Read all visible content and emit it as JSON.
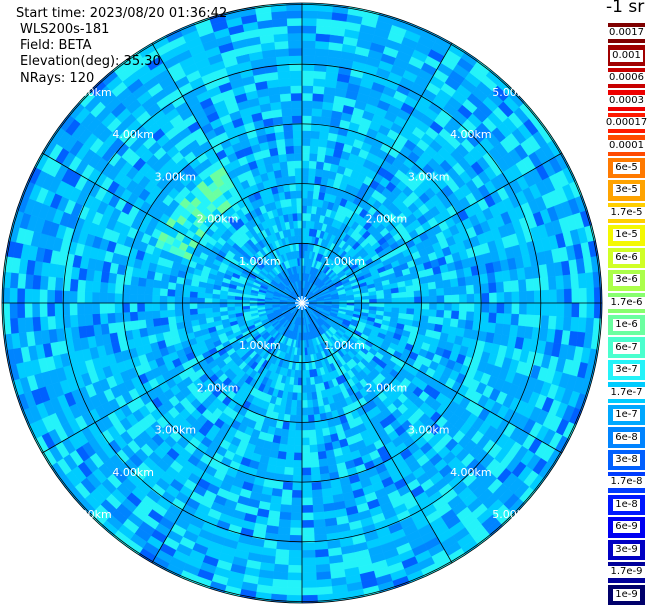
{
  "header": {
    "start_time": "Start time: 2023/08/20 01:36:42",
    "instrument": "WLS200s-181",
    "field": "Field: BETA",
    "elevation": "Elevation(deg): 35.30",
    "nrays": "NRays: 120"
  },
  "colorbar": {
    "unit": "-1 sr",
    "ticks": [
      "0.0017",
      "0.001",
      "0.0006",
      "0.0003",
      "0.00017",
      "0.0001",
      "6e-5",
      "3e-5",
      "1.7e-5",
      "1e-5",
      "6e-6",
      "3e-6",
      "1.7e-6",
      "1e-6",
      "6e-7",
      "3e-7",
      "1.7e-7",
      "1e-7",
      "6e-8",
      "3e-8",
      "1.7e-8",
      "1e-8",
      "6e-9",
      "3e-9",
      "1.7e-9",
      "1e-9"
    ],
    "colors": [
      "#7f0000",
      "#a00000",
      "#c80000",
      "#ee0000",
      "#ff1a00",
      "#ff4a00",
      "#ff7a00",
      "#ffa300",
      "#ffcf00",
      "#f4f802",
      "#d0ff26",
      "#abff4a",
      "#88ff6e",
      "#6bffa0",
      "#4affce",
      "#24f3f9",
      "#00ccff",
      "#00a8ff",
      "#0084ff",
      "#0060ff",
      "#003cff",
      "#0018ff",
      "#0000f1",
      "#0000c4",
      "#00009a",
      "#00006b"
    ]
  },
  "chart_data": {
    "type": "heatmap",
    "subtype": "polar-ppi",
    "rings_km": [
      1.0,
      2.0,
      3.0,
      4.0,
      5.0
    ],
    "range_labels": [
      "1.00km",
      "2.00km",
      "3.00km",
      "4.00km",
      "5.00km"
    ],
    "max_range_km": 5.0,
    "n_rays": 120,
    "elevation_deg": 35.3,
    "azimuth_spokes_deg": [
      0,
      30,
      60,
      90,
      120,
      150,
      180,
      210,
      240,
      270,
      300,
      330
    ],
    "dominant_value_range": [
      "1e-7",
      "3e-7"
    ],
    "features": [
      {
        "description": "low-value band",
        "range_km": [
          0,
          0.6
        ],
        "value": "3e-8"
      },
      {
        "description": "high-value patches",
        "range_km": [
          4.6,
          5.0
        ],
        "value": "1e-6"
      },
      {
        "description": "higher-value arc",
        "range_km": [
          2.0,
          2.4
        ],
        "azimuth_deg": [
          300,
          330
        ],
        "value": "6e-7"
      }
    ]
  }
}
